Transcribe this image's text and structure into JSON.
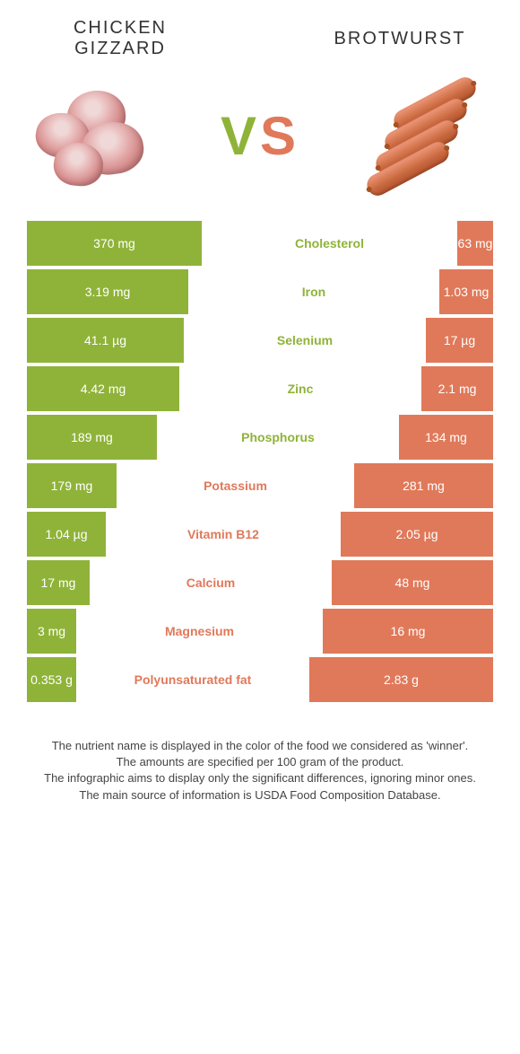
{
  "foods": {
    "left": {
      "name": "Chicken\nGizzard",
      "color": "#8fb339"
    },
    "right": {
      "name": "Brotwurst",
      "color": "#e0795a"
    }
  },
  "vs_text": "VS",
  "row_total_width": 360,
  "colors": {
    "left_bar": "#8fb339",
    "right_bar": "#e0795a",
    "background": "#ffffff",
    "text": "#333333",
    "footer_text": "#444444"
  },
  "nutrients": [
    {
      "name": "Cholesterol",
      "left_label": "370 mg",
      "right_label": "63 mg",
      "left_width": 195,
      "right_width": 40,
      "winner": "left"
    },
    {
      "name": "Iron",
      "left_label": "3.19 mg",
      "right_label": "1.03 mg",
      "left_width": 180,
      "right_width": 60,
      "winner": "left"
    },
    {
      "name": "Selenium",
      "left_label": "41.1 µg",
      "right_label": "17 µg",
      "left_width": 175,
      "right_width": 75,
      "winner": "left"
    },
    {
      "name": "Zinc",
      "left_label": "4.42 mg",
      "right_label": "2.1 mg",
      "left_width": 170,
      "right_width": 80,
      "winner": "left"
    },
    {
      "name": "Phosphorus",
      "left_label": "189 mg",
      "right_label": "134 mg",
      "left_width": 145,
      "right_width": 105,
      "winner": "left"
    },
    {
      "name": "Potassium",
      "left_label": "179 mg",
      "right_label": "281 mg",
      "left_width": 100,
      "right_width": 155,
      "winner": "right"
    },
    {
      "name": "Vitamin B12",
      "left_label": "1.04 µg",
      "right_label": "2.05 µg",
      "left_width": 88,
      "right_width": 170,
      "winner": "right"
    },
    {
      "name": "Calcium",
      "left_label": "17 mg",
      "right_label": "48 mg",
      "left_width": 70,
      "right_width": 180,
      "winner": "right"
    },
    {
      "name": "Magnesium",
      "left_label": "3 mg",
      "right_label": "16 mg",
      "left_width": 55,
      "right_width": 190,
      "winner": "right"
    },
    {
      "name": "Polyunsaturated fat",
      "left_label": "0.353 g",
      "right_label": "2.83 g",
      "left_width": 55,
      "right_width": 205,
      "winner": "right"
    }
  ],
  "footer_lines": [
    "The nutrient name is displayed in the color of the food we considered as 'winner'.",
    "The amounts are specified per 100 gram of the product.",
    "The infographic aims to display only the significant differences, ignoring minor ones.",
    "The main source of information is USDA Food Composition Database."
  ]
}
